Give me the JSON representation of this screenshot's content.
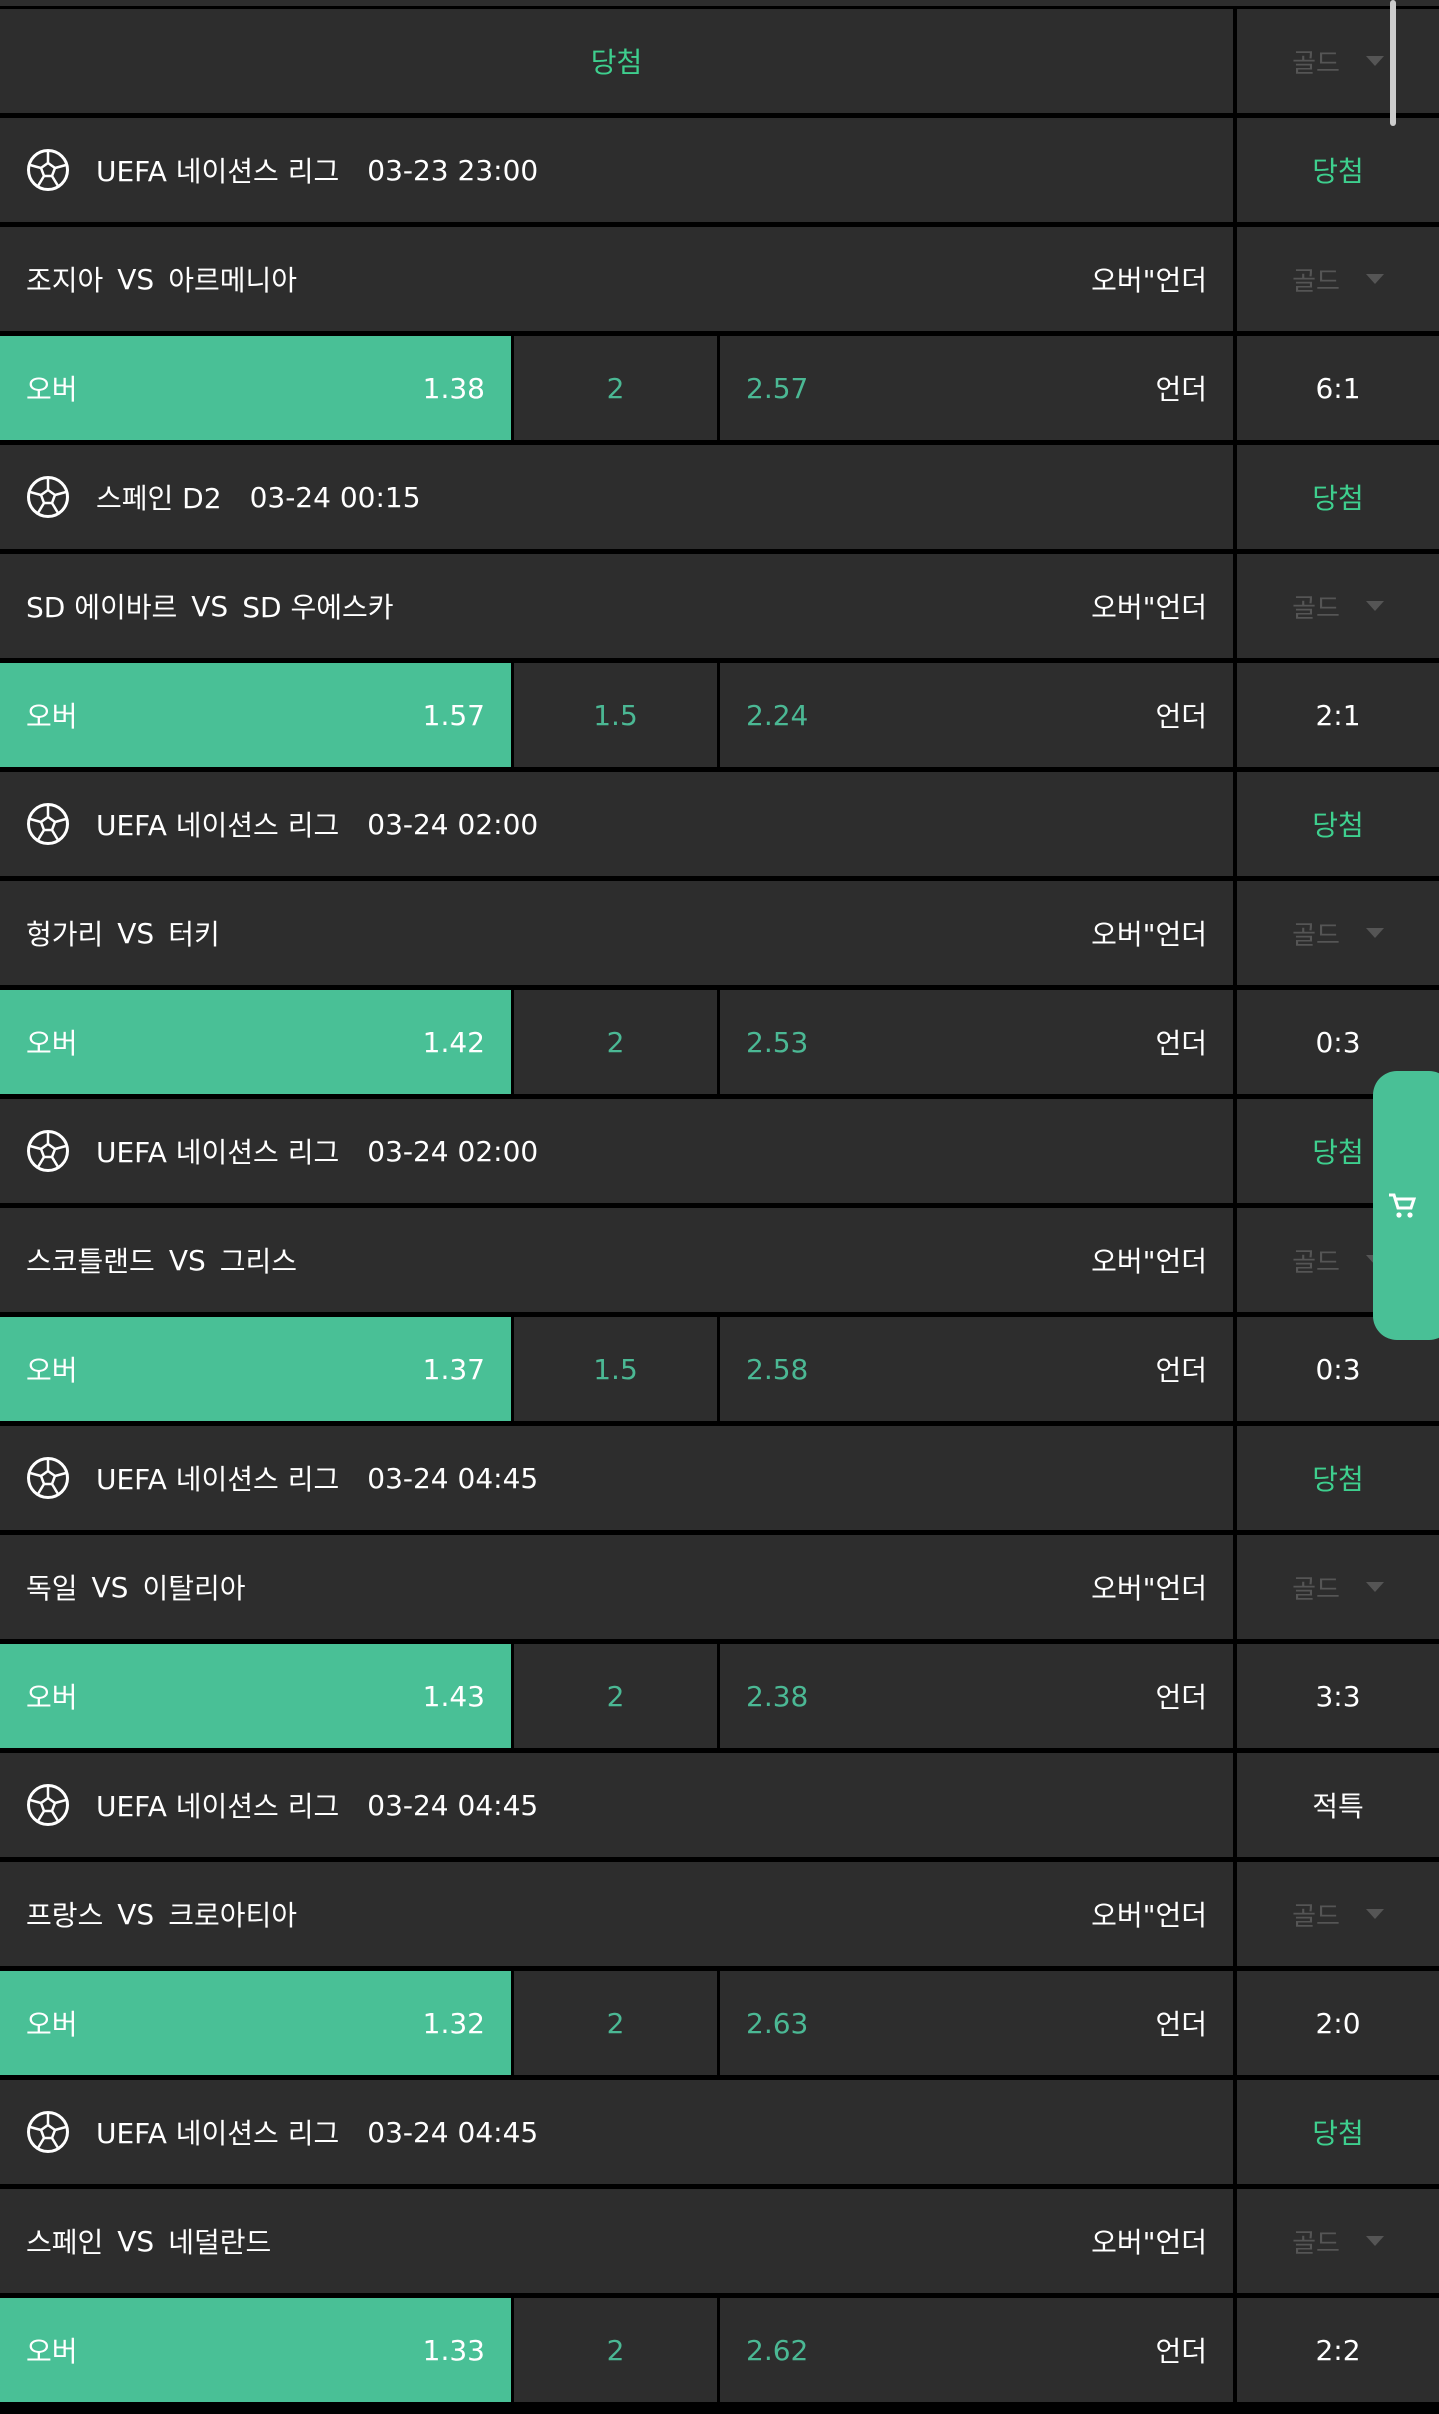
{
  "header_row": {
    "status": "당첨",
    "filter": "골드"
  },
  "over_under_label": "오버\"언더",
  "over_label": "오버",
  "under_label": "언더",
  "vs_label": "VS",
  "icon": "soccer-ball-icon",
  "cart_icon": "cart-icon",
  "colors": {
    "accent": "#49c096",
    "win_text": "#3ecf8e",
    "odds_text": "#4bb894",
    "background": "#2d2d2d"
  },
  "matches": [
    {
      "league": "UEFA 네이션스 리그",
      "time": "03-23 23:00",
      "status": "당첨",
      "home": "조지아",
      "away": "아르메니아",
      "filter": "골드",
      "over_odds": "1.38",
      "line": "2",
      "under_odds": "2.57",
      "score": "6:1"
    },
    {
      "league": "스페인 D2",
      "time": "03-24 00:15",
      "status": "당첨",
      "home": "SD 에이바르",
      "away": "SD 우에스카",
      "filter": "골드",
      "over_odds": "1.57",
      "line": "1.5",
      "under_odds": "2.24",
      "score": "2:1"
    },
    {
      "league": "UEFA 네이션스 리그",
      "time": "03-24 02:00",
      "status": "당첨",
      "home": "헝가리",
      "away": "터키",
      "filter": "골드",
      "over_odds": "1.42",
      "line": "2",
      "under_odds": "2.53",
      "score": "0:3"
    },
    {
      "league": "UEFA 네이션스 리그",
      "time": "03-24 02:00",
      "status": "당첨",
      "home": "스코틀랜드",
      "away": "그리스",
      "filter": "골드",
      "over_odds": "1.37",
      "line": "1.5",
      "under_odds": "2.58",
      "score": "0:3"
    },
    {
      "league": "UEFA 네이션스 리그",
      "time": "03-24 04:45",
      "status": "당첨",
      "home": "독일",
      "away": "이탈리아",
      "filter": "골드",
      "over_odds": "1.43",
      "line": "2",
      "under_odds": "2.38",
      "score": "3:3"
    },
    {
      "league": "UEFA 네이션스 리그",
      "time": "03-24 04:45",
      "status": "적특",
      "home": "프랑스",
      "away": "크로아티아",
      "filter": "골드",
      "over_odds": "1.32",
      "line": "2",
      "under_odds": "2.63",
      "score": "2:0"
    },
    {
      "league": "UEFA 네이션스 리그",
      "time": "03-24 04:45",
      "status": "당첨",
      "home": "스페인",
      "away": "네덜란드",
      "filter": "골드",
      "over_odds": "1.33",
      "line": "2",
      "under_odds": "2.62",
      "score": "2:2"
    }
  ]
}
